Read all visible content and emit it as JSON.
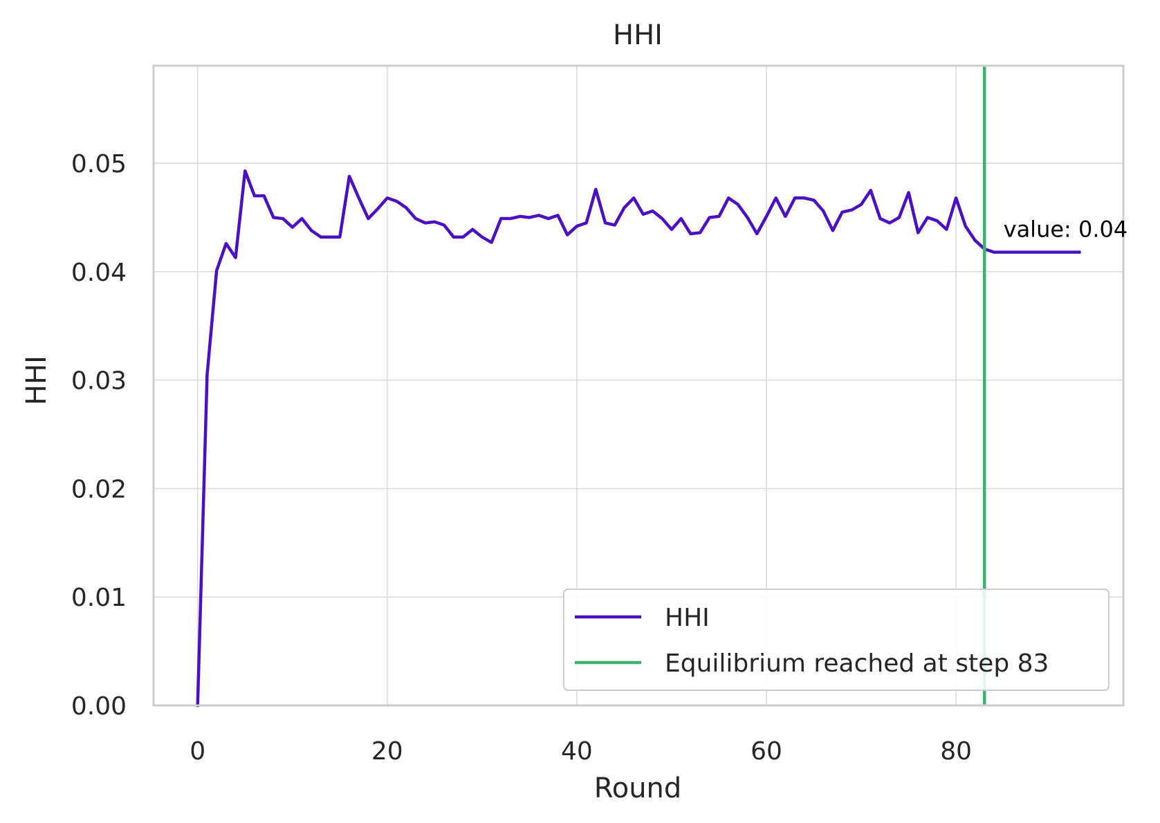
{
  "chart_data": {
    "type": "line",
    "title": "HHI",
    "xlabel": "Round",
    "ylabel": "HHI",
    "xlim": [
      -4.65,
      97.65
    ],
    "ylim": [
      0.0,
      0.059
    ],
    "xticks": [
      0,
      20,
      40,
      60,
      80
    ],
    "xtick_labels": [
      "0",
      "20",
      "40",
      "60",
      "80"
    ],
    "yticks": [
      0.0,
      0.01,
      0.02,
      0.03,
      0.04,
      0.05
    ],
    "ytick_labels": [
      "0.00",
      "0.01",
      "0.02",
      "0.03",
      "0.04",
      "0.05"
    ],
    "grid": true,
    "legend_position": "lower right",
    "series": [
      {
        "name": "HHI",
        "color": "#4b10c0",
        "x": [
          0,
          1,
          2,
          3,
          4,
          5,
          6,
          7,
          8,
          9,
          10,
          11,
          12,
          13,
          14,
          15,
          16,
          17,
          18,
          19,
          20,
          21,
          22,
          23,
          24,
          25,
          26,
          27,
          28,
          29,
          30,
          31,
          32,
          33,
          34,
          35,
          36,
          37,
          38,
          39,
          40,
          41,
          42,
          43,
          44,
          45,
          46,
          47,
          48,
          49,
          50,
          51,
          52,
          53,
          54,
          55,
          56,
          57,
          58,
          59,
          60,
          61,
          62,
          63,
          64,
          65,
          66,
          67,
          68,
          69,
          70,
          71,
          72,
          73,
          74,
          75,
          76,
          77,
          78,
          79,
          80,
          81,
          82,
          83,
          84,
          85,
          86,
          87,
          88,
          89,
          90,
          91,
          92,
          93
        ],
        "y": [
          0.0,
          0.0305,
          0.0401,
          0.0426,
          0.0413,
          0.0493,
          0.047,
          0.047,
          0.045,
          0.0449,
          0.0441,
          0.0449,
          0.0438,
          0.0432,
          0.0432,
          0.0432,
          0.0488,
          0.0468,
          0.0449,
          0.0458,
          0.0468,
          0.0465,
          0.0459,
          0.0449,
          0.0445,
          0.0446,
          0.0443,
          0.0432,
          0.0432,
          0.0439,
          0.0432,
          0.0427,
          0.0449,
          0.0449,
          0.0451,
          0.045,
          0.0452,
          0.0449,
          0.0452,
          0.0434,
          0.0442,
          0.0445,
          0.0476,
          0.0445,
          0.0443,
          0.0459,
          0.0468,
          0.0453,
          0.0456,
          0.0449,
          0.0439,
          0.0449,
          0.0435,
          0.0436,
          0.045,
          0.0451,
          0.0468,
          0.0462,
          0.045,
          0.0435,
          0.0451,
          0.0468,
          0.0451,
          0.0468,
          0.0468,
          0.0466,
          0.0456,
          0.0438,
          0.0455,
          0.0457,
          0.0462,
          0.0475,
          0.0449,
          0.0445,
          0.045,
          0.0473,
          0.0436,
          0.045,
          0.0447,
          0.0439,
          0.0468,
          0.0442,
          0.0429,
          0.0421,
          0.0418,
          0.0418,
          0.0418,
          0.0418,
          0.0418,
          0.0418,
          0.0418,
          0.0418,
          0.0418,
          0.0418
        ]
      },
      {
        "name": "Equilibrium reached at step 83",
        "color": "#3cb371",
        "type": "vline",
        "x": 83
      }
    ],
    "annotations": [
      {
        "text": "value: 0.04",
        "x": 85,
        "y": 0.0432
      }
    ]
  }
}
